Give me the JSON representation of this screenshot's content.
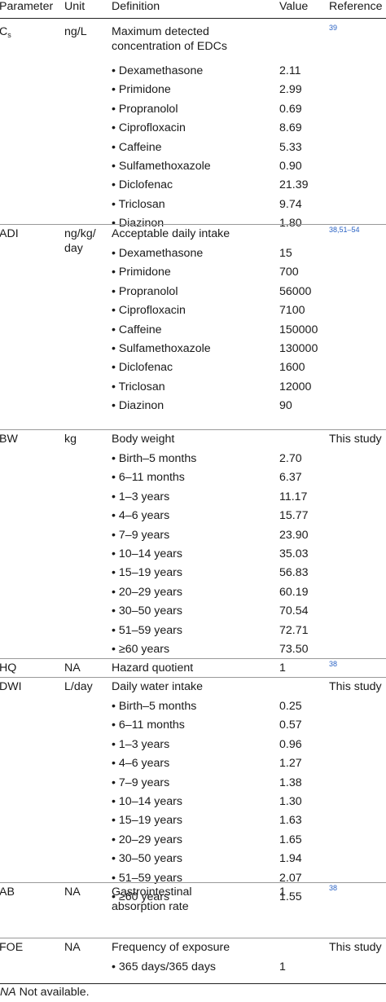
{
  "headers": {
    "parameter": "Parameter",
    "unit": "Unit",
    "definition": "Definition",
    "value": "Value",
    "reference": "Reference"
  },
  "groups": [
    {
      "parameter": "C",
      "parameter_sub": "s",
      "unit": "ng/L",
      "definition": "Maximum detected concentration of EDCs",
      "definition_lines": [
        "Maximum detected",
        "concentration of EDCs"
      ],
      "value": "",
      "reference": "39",
      "items": [
        {
          "label": "• Dexamethasone",
          "value": "2.11"
        },
        {
          "label": "• Primidone",
          "value": "2.99"
        },
        {
          "label": "• Propranolol",
          "value": "0.69"
        },
        {
          "label": "• Ciprofloxacin",
          "value": "8.69"
        },
        {
          "label": "• Caffeine",
          "value": "5.33"
        },
        {
          "label": "• Sulfamethoxazole",
          "value": "0.90"
        },
        {
          "label": "• Diclofenac",
          "value": "21.39"
        },
        {
          "label": "• Triclosan",
          "value": "9.74"
        },
        {
          "label": "• Diazinon",
          "value": "1.80"
        }
      ]
    },
    {
      "parameter": "ADI",
      "unit_lines": [
        "ng/kg/",
        "day"
      ],
      "definition_lines": [
        "Acceptable daily intake"
      ],
      "value": "",
      "reference": "38,51–54",
      "items": [
        {
          "label": "• Dexamethasone",
          "value": "15"
        },
        {
          "label": "• Primidone",
          "value": "700"
        },
        {
          "label": "• Propranolol",
          "value": "56000"
        },
        {
          "label": "• Ciprofloxacin",
          "value": "7100"
        },
        {
          "label": "• Caffeine",
          "value": "150000"
        },
        {
          "label": "• Sulfamethoxazole",
          "value": "130000"
        },
        {
          "label": "• Diclofenac",
          "value": "1600"
        },
        {
          "label": "• Triclosan",
          "value": "12000"
        },
        {
          "label": "• Diazinon",
          "value": "90"
        }
      ]
    },
    {
      "parameter": "BW",
      "unit_lines": [
        "kg"
      ],
      "definition_lines": [
        "Body weight"
      ],
      "value": "",
      "reference_text": "This study",
      "items": [
        {
          "label": "• Birth–5 months",
          "value": "2.70"
        },
        {
          "label": "• 6–11 months",
          "value": "6.37"
        },
        {
          "label": "• 1–3 years",
          "value": "11.17"
        },
        {
          "label": "• 4–6 years",
          "value": "15.77"
        },
        {
          "label": "• 7–9 years",
          "value": "23.90"
        },
        {
          "label": "• 10–14 years",
          "value": "35.03"
        },
        {
          "label": "• 15–19 years",
          "value": "56.83"
        },
        {
          "label": "• 20–29 years",
          "value": "60.19"
        },
        {
          "label": "• 30–50 years",
          "value": "70.54"
        },
        {
          "label": "• 51–59 years",
          "value": "72.71"
        },
        {
          "label": "• ≥60 years",
          "value": "73.50"
        }
      ]
    },
    {
      "parameter": "HQ",
      "unit_lines": [
        "NA"
      ],
      "definition_lines": [
        "Hazard quotient"
      ],
      "value": "1",
      "reference": "38",
      "items": []
    },
    {
      "parameter": "DWI",
      "unit_lines": [
        "L/day"
      ],
      "definition_lines": [
        "Daily water intake"
      ],
      "value": "",
      "reference_text": "This study",
      "items": [
        {
          "label": "• Birth–5 months",
          "value": "0.25"
        },
        {
          "label": "• 6–11 months",
          "value": "0.57"
        },
        {
          "label": "• 1–3 years",
          "value": "0.96"
        },
        {
          "label": "• 4–6 years",
          "value": "1.27"
        },
        {
          "label": "• 7–9 years",
          "value": "1.38"
        },
        {
          "label": "• 10–14 years",
          "value": "1.30"
        },
        {
          "label": "• 15–19 years",
          "value": "1.63"
        },
        {
          "label": "• 20–29 years",
          "value": "1.65"
        },
        {
          "label": "• 30–50 years",
          "value": "1.94"
        },
        {
          "label": "• 51–59 years",
          "value": "2.07"
        },
        {
          "label": "• ≥60 years",
          "value": "1.55"
        }
      ]
    },
    {
      "parameter": "AB",
      "unit_lines": [
        "NA"
      ],
      "definition_lines": [
        "Gastrointestinal",
        "absorption rate"
      ],
      "value": "1",
      "reference": "38",
      "items": []
    },
    {
      "parameter": "FOE",
      "unit_lines": [
        "NA"
      ],
      "definition_lines": [
        "Frequency of exposure"
      ],
      "value": "",
      "reference_text": "This study",
      "items": [
        {
          "label": "• 365 days/365 days",
          "value": "1"
        }
      ]
    }
  ],
  "footnote": {
    "abbr": "NA",
    "text": " Not available."
  }
}
